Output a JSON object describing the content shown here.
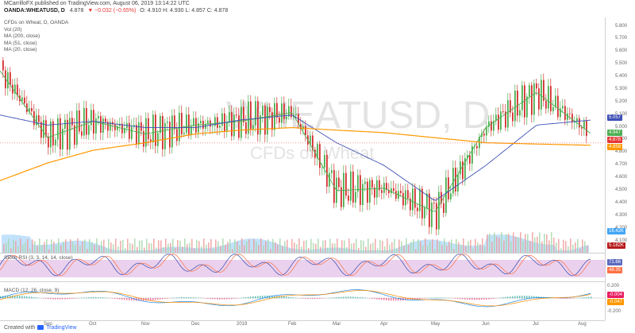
{
  "header": {
    "author_line": "MCarrilloFX published on TradingView.com, August 06, 2019 13:14:22 UTC",
    "symbol": "OANDA:WHEATUSD, D",
    "last": "4.878",
    "change": "▼ −0.032 (−0.65%)",
    "ohlc": "O: 4.910 H: 4.930 L: 4.857 C: 4.878"
  },
  "legend": {
    "title": "CFDs on Wheat, D, OANDA",
    "vol": "Vol (20)",
    "ma200": "MA (200, close)",
    "ma51": "MA (51, close)",
    "ma20": "MA (20, close)"
  },
  "watermark": {
    "symbol": "WHEATUSD, D",
    "name": "CFDs on Wheat"
  },
  "price_axis": [
    "5.800",
    "5.700",
    "5.600",
    "5.500",
    "5.400",
    "5.300",
    "5.200",
    "5.100",
    "5.000",
    "4.900",
    "4.800",
    "4.700",
    "4.600",
    "4.500",
    "4.400",
    "4.300",
    "4.200",
    "4.100"
  ],
  "price_tags": {
    "ma51": "5.057",
    "ma20": "4.947",
    "last": "4.878",
    "ma200": "4.858",
    "vol": "16.42K",
    "vol2": "5.182K"
  },
  "stoch": {
    "label": "Stoch RSI (3, 3, 14, 14, close)",
    "tag1": "71.66",
    "tag2": "48.35"
  },
  "macd": {
    "label": "MACD (12, 26, close, 9)",
    "axis_top": "0.200",
    "axis_bottom": "-0.200",
    "tag1": "-0.004",
    "tag2": "-0.047"
  },
  "time_axis": [
    "Sep",
    "Oct",
    "Nov",
    "Dec",
    "2019",
    "Feb",
    "Mar",
    "Apr",
    "May",
    "Jun",
    "Jul",
    "Aug"
  ],
  "footer": {
    "created_with": "Created with",
    "brand": "TradingView"
  },
  "colors": {
    "up": "#4caf50",
    "down": "#d32f2f",
    "ma200": "#ff9800",
    "ma51": "#3f51b5",
    "ma20": "#4caf50",
    "volume_area": "#90caf9",
    "stoch_band": "#e1bee7"
  },
  "chart_data": {
    "type": "line",
    "title": "CFDs on Wheat, D, OANDA",
    "x": [
      "Aug",
      "Sep",
      "Oct",
      "Nov",
      "Dec",
      "2019",
      "Feb",
      "Mar",
      "Apr",
      "May",
      "Jun",
      "Jul",
      "Aug"
    ],
    "series": [
      {
        "name": "MA (20, close)",
        "values": [
          5.45,
          4.92,
          5.05,
          4.95,
          5.02,
          5.05,
          5.12,
          4.5,
          4.52,
          4.33,
          5.0,
          5.28,
          4.95
        ]
      },
      {
        "name": "MA (51, close)",
        "values": [
          5.1,
          5.02,
          5.05,
          5.0,
          5.0,
          5.06,
          5.1,
          4.88,
          4.7,
          4.42,
          4.7,
          5.02,
          5.06
        ]
      },
      {
        "name": "MA (200, close)",
        "values": [
          4.58,
          4.72,
          4.82,
          4.88,
          4.95,
          4.98,
          5.0,
          4.98,
          4.96,
          4.92,
          4.88,
          4.87,
          4.86
        ]
      }
    ],
    "ylim": [
      4.1,
      5.8
    ],
    "grid": false,
    "legend": "top-left"
  }
}
